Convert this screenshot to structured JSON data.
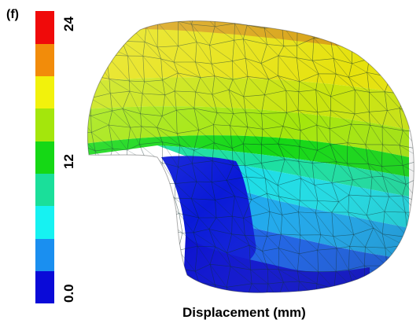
{
  "panel_label": "(f)",
  "colorbar": {
    "min": 0.0,
    "max": 24,
    "tick_labels": [
      "0.0",
      "12",
      "24"
    ],
    "colors": [
      "#0a0ad8",
      "#1a8ff0",
      "#16f2f2",
      "#1adf9a",
      "#15d815",
      "#a4e60c",
      "#f2f20c",
      "#f28c0a",
      "#f00a0a"
    ]
  },
  "x_label": "Displacement (mm)"
}
